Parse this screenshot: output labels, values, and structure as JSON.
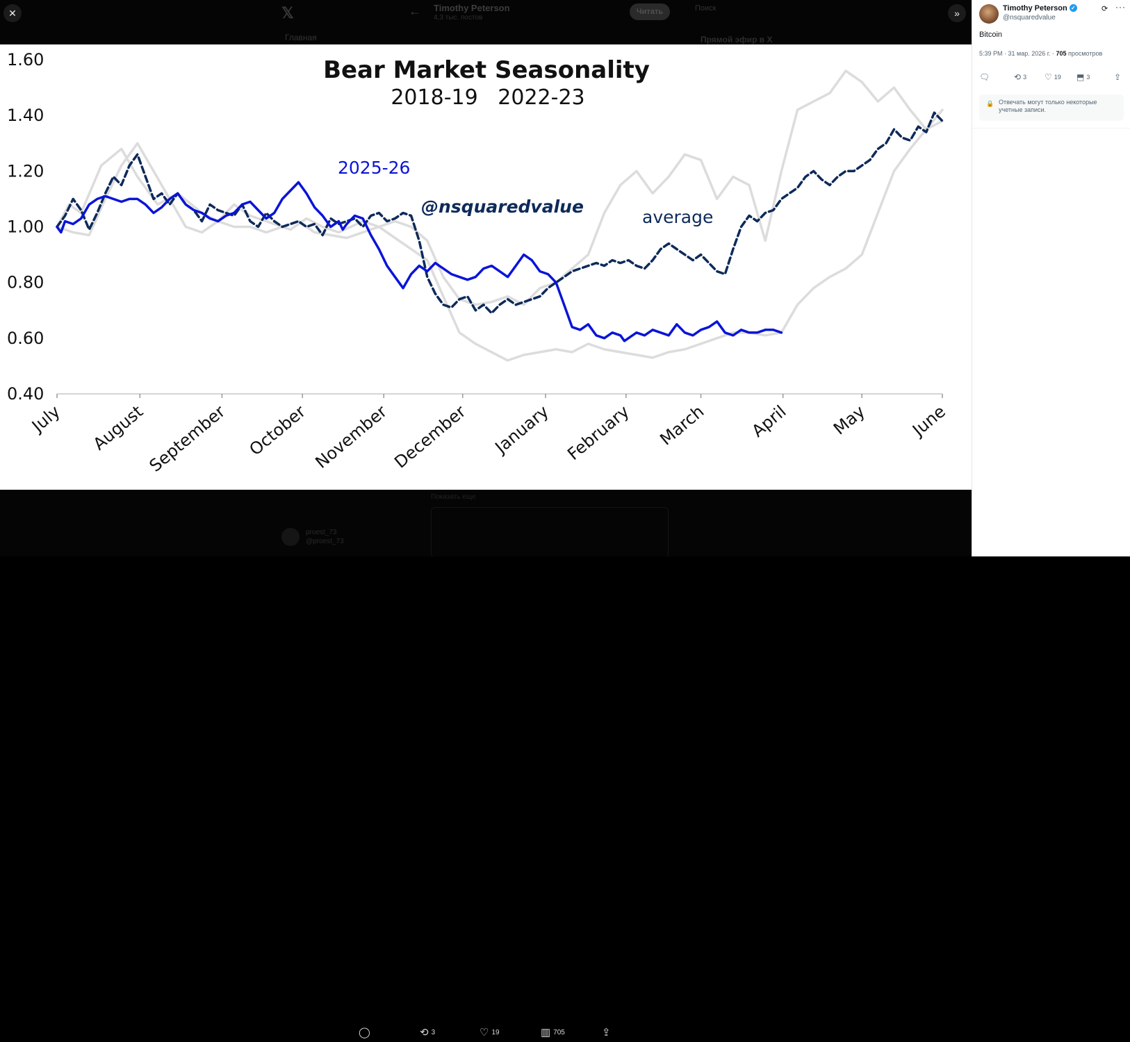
{
  "backdrop": {
    "x_logo": "𝕏",
    "back_arrow": "←",
    "profile_name": "Timothy Peterson",
    "profile_posts": "4,3 тыс. постов",
    "read_button": "Читать",
    "search_placeholder": "Поиск",
    "nav_home": "Главная",
    "trend_title": "Прямой эфир в X",
    "reply_name": "proest_73",
    "reply_handle": "@proest_73",
    "reply_text": "Показать еще"
  },
  "viewer": {
    "close_icon": "✕",
    "expand_icon": "»",
    "reply_icon": "comment-icon",
    "repost_count": "3",
    "like_count": "19",
    "views_count": "705"
  },
  "chart_data": {
    "type": "line",
    "title": "Bear Market Seasonality",
    "subtitle": "2018-19   2022-23",
    "watermark": "@nsquaredvalue",
    "xlabel": "",
    "ylabel": "",
    "ylim": [
      0.4,
      1.6
    ],
    "yticks": [
      "1.60",
      "1.40",
      "1.20",
      "1.00",
      "0.80",
      "0.60",
      "0.40"
    ],
    "ytick_values": [
      1.6,
      1.4,
      1.2,
      1.0,
      0.8,
      0.6,
      0.4
    ],
    "xlim": [
      0,
      11
    ],
    "categories": [
      "July",
      "August",
      "September",
      "October",
      "November",
      "December",
      "January",
      "February",
      "March",
      "April",
      "May",
      "June"
    ],
    "category_positions": [
      0,
      1.03,
      2.05,
      3.05,
      4.06,
      5.04,
      6.07,
      7.07,
      8.0,
      9.02,
      10.0,
      11.0
    ],
    "colors": {
      "current": "#0a14d8",
      "average": "#0d2a5a",
      "historical": "#dcdcdc",
      "axis": "#333333"
    },
    "series": [
      {
        "name": "2018-19",
        "style": "gray",
        "x": [
          0,
          0.15,
          0.3,
          0.55,
          0.8,
          1.0,
          1.25,
          1.5,
          1.8,
          2.0,
          2.2,
          2.4,
          2.6,
          2.9,
          3.1,
          3.3,
          3.5,
          3.8,
          4.0,
          4.2,
          4.4,
          4.6,
          4.8,
          5.0,
          5.2,
          5.4,
          5.6,
          5.8,
          6.0,
          6.2,
          6.4,
          6.6,
          6.8,
          7.0,
          7.2,
          7.4,
          7.6,
          7.8,
          8.0,
          8.2,
          8.4,
          8.6,
          8.8,
          9.0,
          9.2,
          9.4,
          9.6,
          9.8,
          10.0,
          10.2,
          10.4,
          10.6,
          10.8,
          11.0
        ],
        "values": [
          1.0,
          1.08,
          1.05,
          1.22,
          1.28,
          1.18,
          1.08,
          1.12,
          1.05,
          1.02,
          1.08,
          1.04,
          1.02,
          0.99,
          1.03,
          1.0,
          0.98,
          1.02,
          1.0,
          1.02,
          1.0,
          0.95,
          0.82,
          0.74,
          0.72,
          0.73,
          0.75,
          0.72,
          0.78,
          0.8,
          0.85,
          0.9,
          1.05,
          1.15,
          1.2,
          1.12,
          1.18,
          1.26,
          1.24,
          1.1,
          1.18,
          1.15,
          0.95,
          1.2,
          1.42,
          1.45,
          1.48,
          1.56,
          1.52,
          1.45,
          1.5,
          1.42,
          1.35,
          1.42
        ]
      },
      {
        "name": "2022-23",
        "style": "gray",
        "x": [
          0,
          0.2,
          0.4,
          0.6,
          0.8,
          1.0,
          1.2,
          1.4,
          1.6,
          1.8,
          2.0,
          2.2,
          2.4,
          2.6,
          2.8,
          3.0,
          3.2,
          3.4,
          3.6,
          3.8,
          4.0,
          4.2,
          4.4,
          4.6,
          4.8,
          5.0,
          5.2,
          5.4,
          5.6,
          5.8,
          6.0,
          6.2,
          6.4,
          6.6,
          6.8,
          7.0,
          7.2,
          7.4,
          7.6,
          7.8,
          8.0,
          8.2,
          8.4,
          8.6,
          8.8,
          9.0,
          9.2,
          9.4,
          9.6,
          9.8,
          10.0,
          10.2,
          10.4,
          10.6,
          10.8,
          11.0
        ],
        "values": [
          1.0,
          0.98,
          0.97,
          1.1,
          1.22,
          1.3,
          1.2,
          1.1,
          1.0,
          0.98,
          1.02,
          1.0,
          1.0,
          0.98,
          1.0,
          1.02,
          0.98,
          0.97,
          0.96,
          0.98,
          1.0,
          0.96,
          0.92,
          0.88,
          0.75,
          0.62,
          0.58,
          0.55,
          0.52,
          0.54,
          0.55,
          0.56,
          0.55,
          0.58,
          0.56,
          0.55,
          0.54,
          0.53,
          0.55,
          0.56,
          0.58,
          0.6,
          0.62,
          0.62,
          0.61,
          0.62,
          0.72,
          0.78,
          0.82,
          0.85,
          0.9,
          1.05,
          1.2,
          1.28,
          1.35,
          1.38
        ]
      },
      {
        "name": "average",
        "style": "dashed",
        "x": [
          0,
          0.1,
          0.2,
          0.3,
          0.4,
          0.5,
          0.6,
          0.7,
          0.8,
          0.9,
          1.0,
          1.1,
          1.2,
          1.3,
          1.4,
          1.5,
          1.6,
          1.7,
          1.8,
          1.9,
          2.0,
          2.1,
          2.2,
          2.3,
          2.4,
          2.5,
          2.6,
          2.7,
          2.8,
          2.9,
          3.0,
          3.1,
          3.2,
          3.3,
          3.4,
          3.5,
          3.6,
          3.7,
          3.8,
          3.9,
          4.0,
          4.1,
          4.2,
          4.3,
          4.4,
          4.5,
          4.6,
          4.7,
          4.8,
          4.9,
          5.0,
          5.1,
          5.2,
          5.3,
          5.4,
          5.5,
          5.6,
          5.7,
          5.8,
          5.9,
          6.0,
          6.1,
          6.2,
          6.3,
          6.4,
          6.5,
          6.6,
          6.7,
          6.8,
          6.9,
          7.0,
          7.1,
          7.2,
          7.3,
          7.4,
          7.5,
          7.6,
          7.7,
          7.8,
          7.9,
          8.0,
          8.1,
          8.2,
          8.3,
          8.4,
          8.5,
          8.6,
          8.7,
          8.8,
          8.9,
          9.0,
          9.1,
          9.2,
          9.3,
          9.4,
          9.5,
          9.6,
          9.7,
          9.8,
          9.9,
          10.0,
          10.1,
          10.2,
          10.3,
          10.4,
          10.5,
          10.6,
          10.7,
          10.8,
          10.9,
          11.0
        ],
        "values": [
          1.0,
          1.04,
          1.1,
          1.06,
          0.99,
          1.05,
          1.12,
          1.18,
          1.15,
          1.22,
          1.26,
          1.18,
          1.1,
          1.12,
          1.08,
          1.12,
          1.08,
          1.06,
          1.02,
          1.08,
          1.06,
          1.05,
          1.04,
          1.08,
          1.02,
          1.0,
          1.05,
          1.02,
          1.0,
          1.01,
          1.02,
          1.0,
          1.01,
          0.97,
          1.03,
          1.01,
          1.02,
          1.03,
          1.0,
          1.04,
          1.05,
          1.02,
          1.03,
          1.05,
          1.04,
          0.95,
          0.82,
          0.76,
          0.72,
          0.71,
          0.74,
          0.75,
          0.7,
          0.72,
          0.69,
          0.72,
          0.74,
          0.72,
          0.73,
          0.74,
          0.75,
          0.78,
          0.8,
          0.82,
          0.84,
          0.85,
          0.86,
          0.87,
          0.86,
          0.88,
          0.87,
          0.88,
          0.86,
          0.85,
          0.88,
          0.92,
          0.94,
          0.92,
          0.9,
          0.88,
          0.9,
          0.87,
          0.84,
          0.83,
          0.92,
          1.0,
          1.04,
          1.02,
          1.05,
          1.06,
          1.1,
          1.12,
          1.14,
          1.18,
          1.2,
          1.17,
          1.15,
          1.18,
          1.2,
          1.2,
          1.22,
          1.24,
          1.28,
          1.3,
          1.35,
          1.32,
          1.31,
          1.36,
          1.34,
          1.41,
          1.38
        ]
      },
      {
        "name": "2025-26",
        "style": "solid",
        "x": [
          0,
          0.05,
          0.1,
          0.2,
          0.3,
          0.4,
          0.5,
          0.6,
          0.7,
          0.8,
          0.9,
          1.0,
          1.1,
          1.2,
          1.3,
          1.4,
          1.5,
          1.6,
          1.7,
          1.8,
          1.9,
          2.0,
          2.1,
          2.2,
          2.3,
          2.4,
          2.5,
          2.6,
          2.7,
          2.8,
          2.9,
          3.0,
          3.1,
          3.2,
          3.3,
          3.4,
          3.5,
          3.55,
          3.6,
          3.7,
          3.8,
          3.9,
          4.0,
          4.1,
          4.2,
          4.3,
          4.4,
          4.5,
          4.6,
          4.7,
          4.8,
          4.9,
          5.0,
          5.1,
          5.2,
          5.3,
          5.4,
          5.5,
          5.6,
          5.7,
          5.8,
          5.9,
          6.0,
          6.1,
          6.2,
          6.3,
          6.4,
          6.5,
          6.6,
          6.7,
          6.8,
          6.9,
          7.0,
          7.05,
          7.1,
          7.2,
          7.3,
          7.4,
          7.5,
          7.6,
          7.7,
          7.8,
          7.9,
          8.0,
          8.1,
          8.2,
          8.3,
          8.4,
          8.5,
          8.6,
          8.7,
          8.8,
          8.9,
          9.0
        ],
        "values": [
          1.0,
          0.98,
          1.02,
          1.01,
          1.03,
          1.08,
          1.1,
          1.11,
          1.1,
          1.09,
          1.1,
          1.1,
          1.08,
          1.05,
          1.07,
          1.1,
          1.12,
          1.08,
          1.06,
          1.05,
          1.03,
          1.02,
          1.04,
          1.05,
          1.08,
          1.09,
          1.06,
          1.03,
          1.05,
          1.1,
          1.13,
          1.16,
          1.12,
          1.07,
          1.04,
          1.0,
          1.02,
          0.99,
          1.01,
          1.04,
          1.03,
          0.97,
          0.92,
          0.86,
          0.82,
          0.78,
          0.83,
          0.86,
          0.84,
          0.87,
          0.85,
          0.83,
          0.82,
          0.81,
          0.82,
          0.85,
          0.86,
          0.84,
          0.82,
          0.86,
          0.9,
          0.88,
          0.84,
          0.83,
          0.8,
          0.72,
          0.64,
          0.63,
          0.65,
          0.61,
          0.6,
          0.62,
          0.61,
          0.59,
          0.6,
          0.62,
          0.61,
          0.63,
          0.62,
          0.61,
          0.65,
          0.62,
          0.61,
          0.63,
          0.64,
          0.66,
          0.62,
          0.61,
          0.63,
          0.62,
          0.62,
          0.63,
          0.63,
          0.62
        ]
      }
    ],
    "labels": {
      "current": "2025-26",
      "average": "average"
    }
  },
  "panel": {
    "author_name": "Timothy Peterson",
    "author_handle": "@nsquaredvalue",
    "grok_icon": "⟳",
    "more_icon": "···",
    "post_text": "Bitcoin",
    "meta_time": "5:39 PM · 31 мар. 2026 г. · ",
    "meta_views_count": "705",
    "meta_views_label": " просмотров",
    "reply_icon": "🗨",
    "repost_icon": "⟲",
    "repost_count": "3",
    "like_icon": "♡",
    "like_count": "19",
    "bookmark_icon": "⬒",
    "bookmark_count": "3",
    "share_icon": "⇪",
    "lock_icon": "🔒",
    "restricted_text": "Отвечать могут только некоторые учетные записи."
  }
}
